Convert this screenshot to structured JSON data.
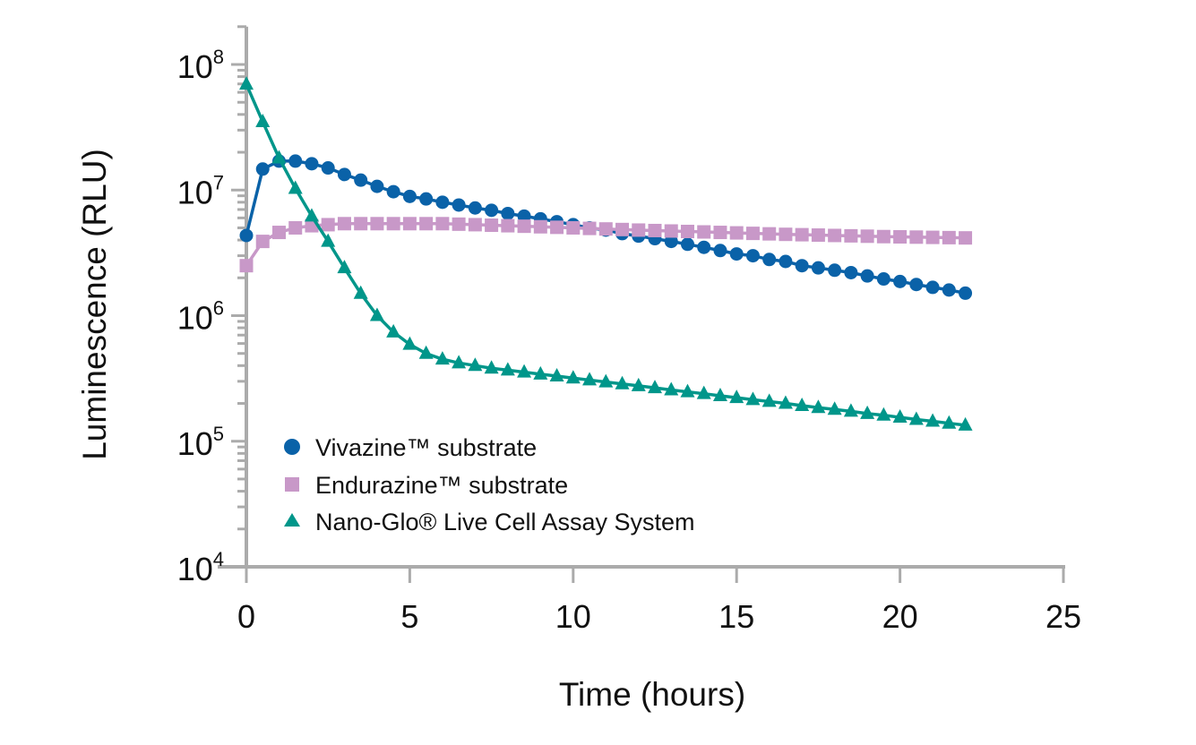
{
  "chart_data": {
    "type": "line",
    "title": "",
    "xlabel": "Time (hours)",
    "ylabel": "Luminescence (RLU)",
    "xlim": [
      0,
      25
    ],
    "ylim": [
      10000,
      200000000
    ],
    "yscale": "log",
    "grid": false,
    "legend_position": "bottom-left",
    "x_ticks": [
      "0",
      "5",
      "10",
      "15",
      "20",
      "25"
    ],
    "y_ticks": [
      {
        "base": "10",
        "exp": "4"
      },
      {
        "base": "10",
        "exp": "5"
      },
      {
        "base": "10",
        "exp": "6"
      },
      {
        "base": "10",
        "exp": "7"
      },
      {
        "base": "10",
        "exp": "8"
      }
    ],
    "x": [
      0,
      0.5,
      1,
      1.5,
      2,
      2.5,
      3,
      3.5,
      4,
      4.5,
      5,
      5.5,
      6,
      6.5,
      7,
      7.5,
      8,
      8.5,
      9,
      9.5,
      10,
      10.5,
      11,
      11.5,
      12,
      12.5,
      13,
      13.5,
      14,
      14.5,
      15,
      15.5,
      16,
      16.5,
      17,
      17.5,
      18,
      18.5,
      19,
      19.5,
      20,
      20.5,
      21,
      21.5,
      22
    ],
    "series": [
      {
        "name": "Vivazine™ substrate",
        "color": "#0a62a8",
        "marker": "circle",
        "values": [
          4350000,
          14700000,
          17000000,
          17000000,
          16200000,
          15000000,
          13300000,
          12000000,
          10700000,
          9700000,
          8900000,
          8500000,
          8000000,
          7600000,
          7200000,
          6900000,
          6500000,
          6200000,
          5900000,
          5600000,
          5300000,
          5000000,
          4800000,
          4500000,
          4300000,
          4100000,
          3900000,
          3700000,
          3500000,
          3300000,
          3100000,
          3000000,
          2800000,
          2700000,
          2500000,
          2400000,
          2300000,
          2200000,
          2070000,
          1960000,
          1870000,
          1770000,
          1680000,
          1600000,
          1510000
        ]
      },
      {
        "name": "Endurazine™ substrate",
        "color": "#c898c8",
        "marker": "square",
        "values": [
          2500000,
          3900000,
          4600000,
          5000000,
          5200000,
          5300000,
          5400000,
          5400000,
          5400000,
          5400000,
          5400000,
          5400000,
          5400000,
          5350000,
          5300000,
          5250000,
          5200000,
          5150000,
          5100000,
          5050000,
          5000000,
          4950000,
          4900000,
          4850000,
          4800000,
          4760000,
          4720000,
          4680000,
          4640000,
          4600000,
          4560000,
          4520000,
          4480000,
          4440000,
          4410000,
          4380000,
          4350000,
          4320000,
          4290000,
          4260000,
          4240000,
          4220000,
          4200000,
          4180000,
          4160000
        ]
      },
      {
        "name": "Nano-Glo® Live Cell Assay System",
        "color": "#00968a",
        "marker": "triangle",
        "values": [
          69600000,
          35000000,
          18000000,
          10300000,
          6200000,
          3900000,
          2400000,
          1500000,
          1000000,
          740000,
          590000,
          500000,
          450000,
          420000,
          400000,
          381000,
          368000,
          355000,
          342000,
          330000,
          318000,
          307000,
          296000,
          286000,
          276000,
          266000,
          256000,
          247000,
          239000,
          230000,
          222000,
          214000,
          207000,
          200000,
          192000,
          185000,
          179000,
          173000,
          166000,
          161000,
          155000,
          149000,
          144000,
          139000,
          134000
        ]
      }
    ],
    "axis_color": "#ababab"
  },
  "legend": {
    "items": [
      {
        "label": "Vivazine™ substrate"
      },
      {
        "label": "Endurazine™ substrate"
      },
      {
        "label": "Nano-Glo® Live Cell Assay System"
      }
    ]
  }
}
